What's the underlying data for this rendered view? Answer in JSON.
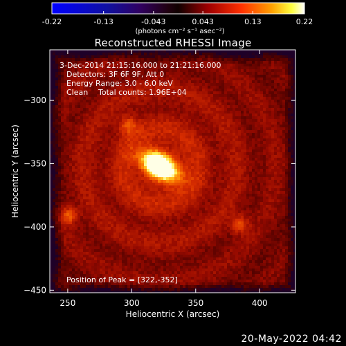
{
  "colorbar": {
    "ticks": [
      "-0.22",
      "-0.13",
      "-0.043",
      "0.043",
      "0.13",
      "0.22"
    ],
    "tick_values": [
      -0.22,
      -0.13,
      -0.043,
      0.043,
      0.13,
      0.22
    ],
    "range": [
      -0.22,
      0.22
    ],
    "unit_label": "(photons cm⁻² s⁻¹ asec⁻²)"
  },
  "title": "Reconstructed RHESSI Image",
  "annotation": {
    "time_range": "3-Dec-2014 21:15:16.000 to 21:21:16.000",
    "detectors": "Detectors: 3F 6F 9F, Att 0",
    "energy": "Energy Range: 3.0 - 6.0 keV",
    "algorithm": "Clean",
    "counts": "Total counts: 1.96E+04",
    "peak": "Position of Peak = [322,-352]"
  },
  "timestamp": "20-May-2022 04:42",
  "chart_data": {
    "type": "heatmap",
    "title": "Reconstructed RHESSI Image",
    "xlabel": "Heliocentric X (arcsec)",
    "ylabel": "Heliocentric Y (arcsec)",
    "xlim": [
      236,
      428
    ],
    "ylim": [
      -452,
      -260
    ],
    "xticks": [
      250,
      300,
      350,
      400
    ],
    "yticks": [
      -450,
      -400,
      -350,
      -300
    ],
    "colormap": "red-temperature",
    "peak": {
      "x": 322,
      "y": -352,
      "value": 0.22
    },
    "secondary_sources": [
      {
        "x": 250,
        "y": -390,
        "value": 0.09
      },
      {
        "x": 383,
        "y": -397,
        "value": 0.08
      },
      {
        "x": 296,
        "y": -318,
        "value": 0.07
      }
    ]
  }
}
